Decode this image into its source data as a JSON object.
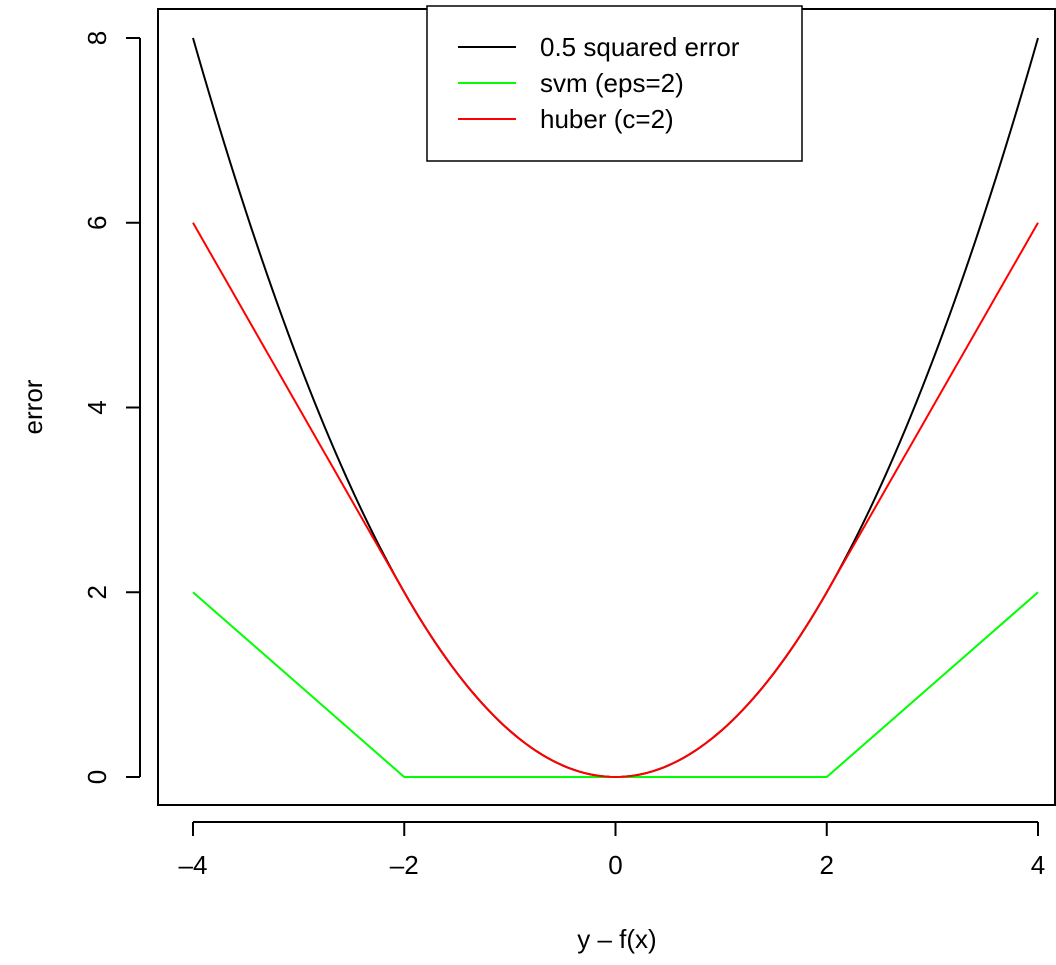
{
  "chart_data": {
    "type": "line",
    "title": "",
    "xlabel": "y – f(x)",
    "ylabel": "error",
    "xlim": [
      -4,
      4
    ],
    "ylim": [
      0,
      8
    ],
    "x_ticks": [
      -4,
      -2,
      0,
      2,
      4
    ],
    "x_tick_labels": [
      "–4",
      "–2",
      "0",
      "2",
      "4"
    ],
    "y_ticks": [
      0,
      2,
      4,
      6,
      8
    ],
    "y_tick_labels": [
      "0",
      "2",
      "4",
      "6",
      "8"
    ],
    "grid": false,
    "legend_position": "top",
    "series": [
      {
        "name": "0.5 squared error",
        "color": "#000000",
        "x": [
          -4,
          -3.5,
          -3,
          -2.5,
          -2,
          -1.5,
          -1,
          -0.5,
          0,
          0.5,
          1,
          1.5,
          2,
          2.5,
          3,
          3.5,
          4
        ],
        "y": [
          8,
          6.125,
          4.5,
          3.125,
          2,
          1.125,
          0.5,
          0.125,
          0,
          0.125,
          0.5,
          1.125,
          2,
          3.125,
          4.5,
          6.125,
          8
        ]
      },
      {
        "name": "svm (eps=2)",
        "color": "#00ff00",
        "x": [
          -4,
          -2,
          2,
          4
        ],
        "y": [
          2,
          0,
          0,
          2
        ]
      },
      {
        "name": "huber (c=2)",
        "color": "#ff0000",
        "x": [
          -4,
          -3,
          -2,
          -1.5,
          -1,
          -0.5,
          0,
          0.5,
          1,
          1.5,
          2,
          3,
          4
        ],
        "y": [
          6,
          4,
          2,
          1.125,
          0.5,
          0.125,
          0,
          0.125,
          0.5,
          1.125,
          2,
          4,
          6
        ]
      }
    ]
  }
}
